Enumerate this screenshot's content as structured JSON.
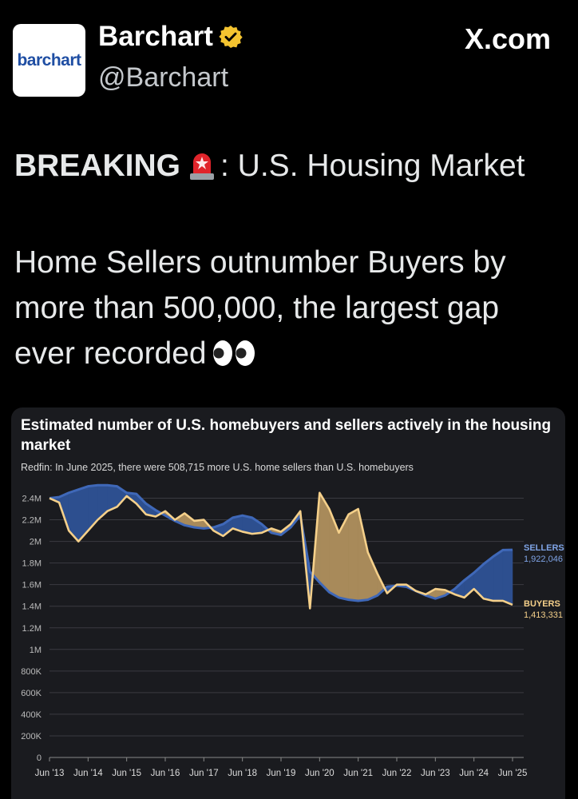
{
  "tweet": {
    "avatar_text": "barchart",
    "name": "Barchart",
    "handle": "@Barchart",
    "source": "X.com",
    "headline_bold": "BREAKING",
    "headline_rest": ": U.S. Housing Market",
    "body": "Home Sellers outnumber Buyers by more than 500,000, the largest gap ever recorded",
    "icons": {
      "verified": "verified-badge-icon",
      "siren": "siren-emoji-icon",
      "eyes": "eyes-emoji-icon"
    }
  },
  "chart_data": {
    "type": "area",
    "title": "Estimated number of U.S. homebuyers and sellers actively in the housing market",
    "subtitle": "Redfin: In June 2025, there were 508,715 more U.S. home sellers than U.S. homebuyers",
    "ylim": [
      0,
      2500000
    ],
    "yticks": [
      0,
      200000,
      400000,
      600000,
      800000,
      1000000,
      1200000,
      1400000,
      1600000,
      1800000,
      2000000,
      2200000,
      2400000
    ],
    "ytick_labels": [
      "0",
      "200K",
      "400K",
      "600K",
      "800K",
      "1M",
      "1.2M",
      "1.4M",
      "1.6M",
      "1.8M",
      "2M",
      "2.2M",
      "2.4M"
    ],
    "xtick_labels": [
      "Jun '13",
      "Jun '14",
      "Jun '15",
      "Jun '16",
      "Jun '17",
      "Jun '18",
      "Jun '19",
      "Jun '20",
      "Jun '21",
      "Jun '22",
      "Jun '23",
      "Jun '24",
      "Jun '25"
    ],
    "x": [
      2013.5,
      2013.75,
      2014.0,
      2014.25,
      2014.5,
      2014.75,
      2015.0,
      2015.25,
      2015.5,
      2015.75,
      2016.0,
      2016.25,
      2016.5,
      2016.75,
      2017.0,
      2017.25,
      2017.5,
      2017.75,
      2018.0,
      2018.25,
      2018.5,
      2018.75,
      2019.0,
      2019.25,
      2019.5,
      2019.75,
      2020.0,
      2020.25,
      2020.5,
      2020.75,
      2021.0,
      2021.25,
      2021.5,
      2021.75,
      2022.0,
      2022.25,
      2022.5,
      2022.75,
      2023.0,
      2023.25,
      2023.5,
      2023.75,
      2024.0,
      2024.25,
      2024.5,
      2024.75,
      2025.0,
      2025.25,
      2025.5
    ],
    "series": [
      {
        "name": "SELLERS",
        "color": "#5b82c9",
        "last_label": "1,922,046",
        "values": [
          2400000,
          2410000,
          2450000,
          2480000,
          2510000,
          2520000,
          2520000,
          2510000,
          2450000,
          2440000,
          2350000,
          2290000,
          2240000,
          2190000,
          2150000,
          2130000,
          2120000,
          2130000,
          2160000,
          2220000,
          2240000,
          2220000,
          2160000,
          2080000,
          2060000,
          2130000,
          2240000,
          1720000,
          1620000,
          1530000,
          1480000,
          1460000,
          1450000,
          1460000,
          1500000,
          1580000,
          1590000,
          1580000,
          1540000,
          1500000,
          1470000,
          1500000,
          1560000,
          1640000,
          1710000,
          1790000,
          1860000,
          1920000,
          1922046
        ]
      },
      {
        "name": "BUYERS",
        "color": "#f5d08a",
        "last_label": "1,413,331",
        "values": [
          2400000,
          2360000,
          2100000,
          2000000,
          2100000,
          2200000,
          2280000,
          2320000,
          2420000,
          2350000,
          2250000,
          2230000,
          2280000,
          2200000,
          2260000,
          2190000,
          2200000,
          2100000,
          2050000,
          2120000,
          2090000,
          2070000,
          2080000,
          2120000,
          2090000,
          2160000,
          2280000,
          1380000,
          2450000,
          2300000,
          2080000,
          2250000,
          2300000,
          1900000,
          1700000,
          1520000,
          1600000,
          1600000,
          1540000,
          1510000,
          1560000,
          1550000,
          1510000,
          1480000,
          1560000,
          1470000,
          1450000,
          1450000,
          1413331
        ]
      }
    ]
  }
}
